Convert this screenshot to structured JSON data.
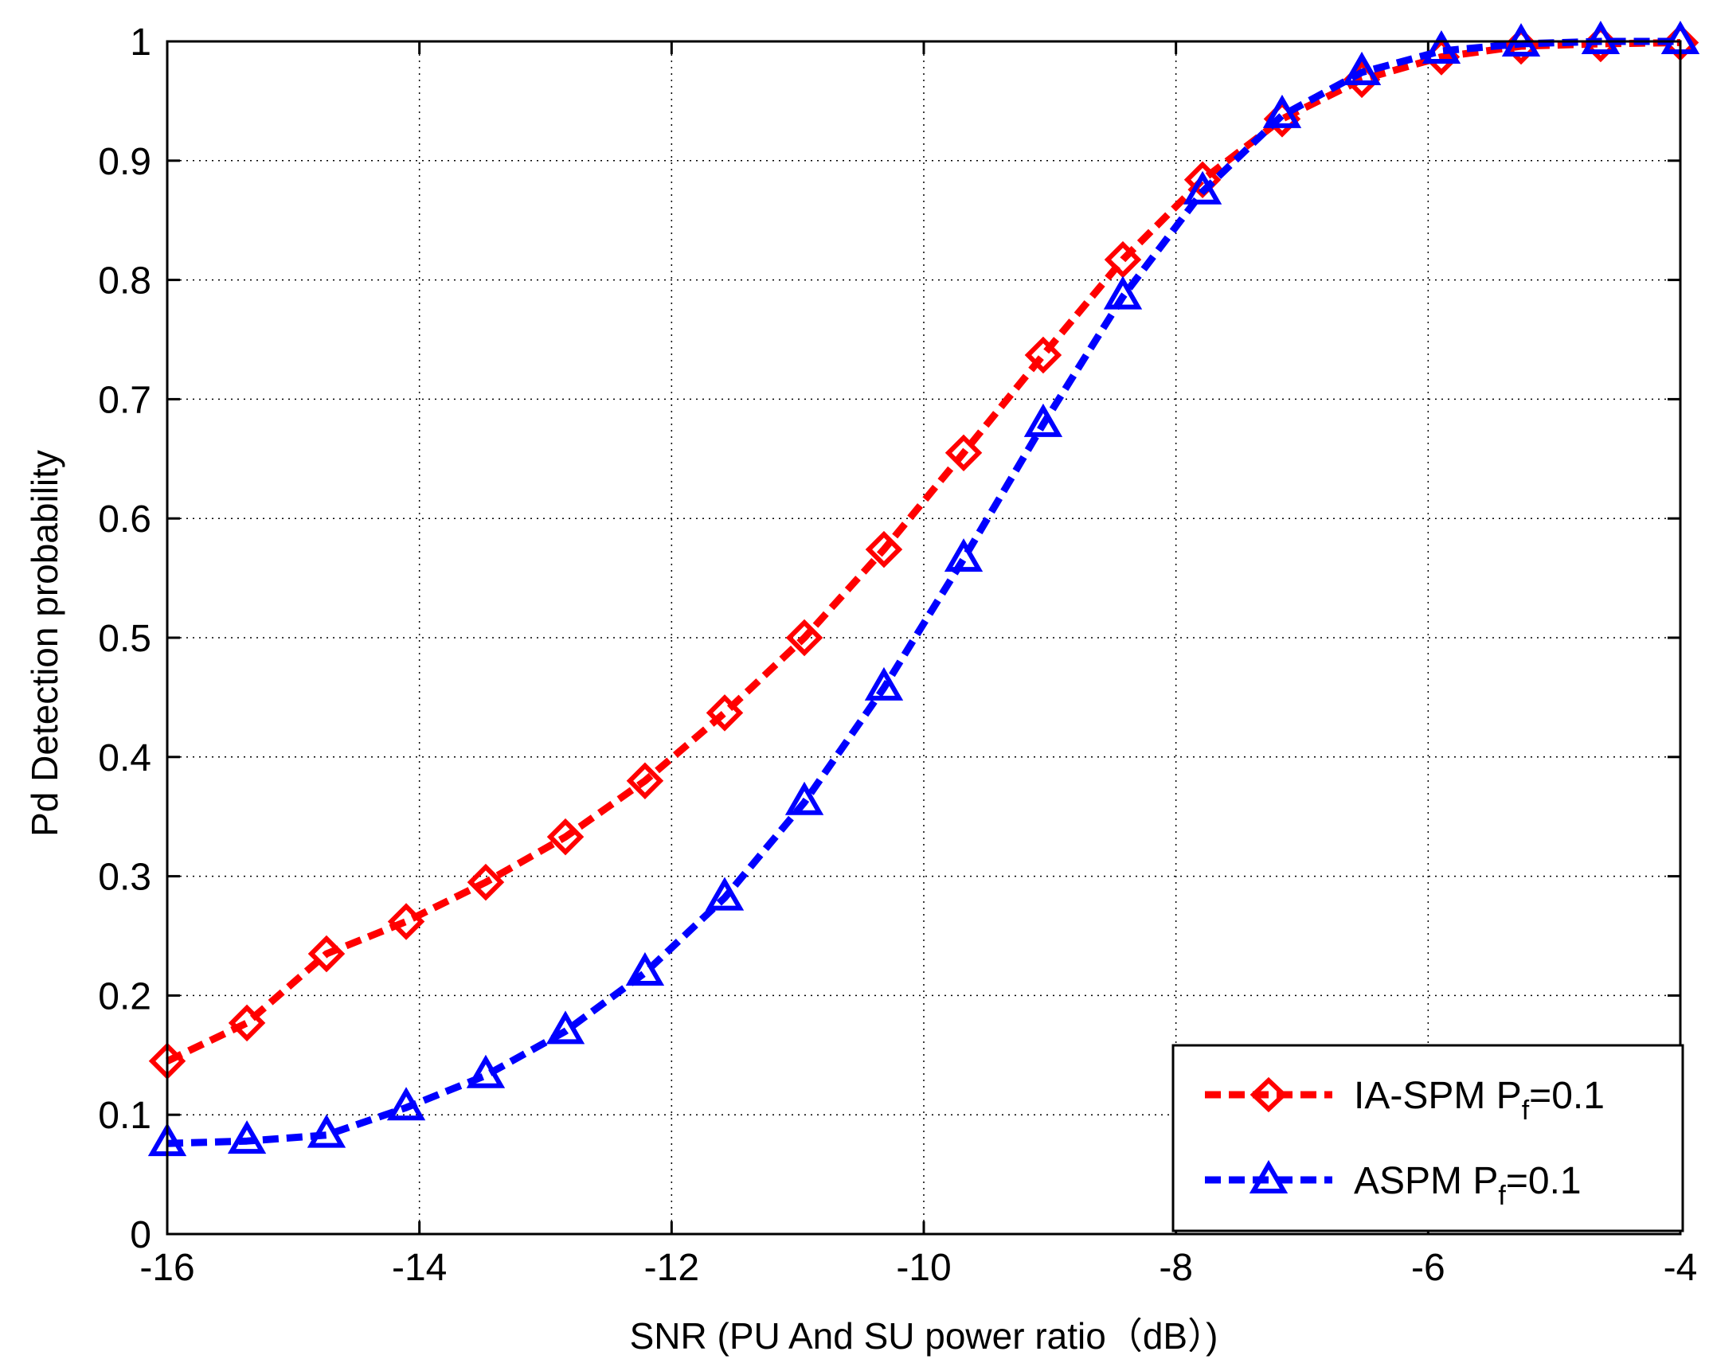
{
  "chart_data": {
    "type": "line",
    "title": "",
    "xlabel": "SNR (PU And SU power ratio（dB）)",
    "ylabel": "Pd Detection probability",
    "xlim": [
      -16,
      -4
    ],
    "ylim": [
      0,
      1
    ],
    "xticks": [
      -16,
      -14,
      -12,
      -10,
      -8,
      -6,
      -4
    ],
    "yticks": [
      0,
      0.1,
      0.2,
      0.3,
      0.4,
      0.5,
      0.6,
      0.7,
      0.8,
      0.9,
      1
    ],
    "x": [
      -16,
      -15.368,
      -14.737,
      -14.105,
      -13.474,
      -12.842,
      -12.211,
      -11.579,
      -10.947,
      -10.316,
      -9.684,
      -9.053,
      -8.421,
      -7.789,
      -7.158,
      -6.526,
      -5.895,
      -5.263,
      -4.632,
      -4
    ],
    "grid": true,
    "legend_position": "bottom-right",
    "series": [
      {
        "name": "IA-SPM P_f=0.1",
        "legend_main": "IA-SPM P",
        "legend_sub": "f",
        "legend_tail": "=0.1",
        "color": "#ff0000",
        "marker": "diamond",
        "values": [
          0.145,
          0.177,
          0.235,
          0.262,
          0.295,
          0.333,
          0.38,
          0.437,
          0.5,
          0.574,
          0.655,
          0.737,
          0.817,
          0.884,
          0.935,
          0.968,
          0.987,
          0.996,
          0.998,
          0.999
        ]
      },
      {
        "name": "ASPM P_f=0.1",
        "legend_main": "ASPM P",
        "legend_sub": "f",
        "legend_tail": "=0.1",
        "color": "#0000ff",
        "marker": "triangle",
        "values": [
          0.076,
          0.078,
          0.083,
          0.106,
          0.133,
          0.17,
          0.219,
          0.282,
          0.362,
          0.458,
          0.566,
          0.679,
          0.786,
          0.874,
          0.938,
          0.974,
          0.992,
          0.998,
          1.0,
          1.0
        ]
      }
    ]
  }
}
